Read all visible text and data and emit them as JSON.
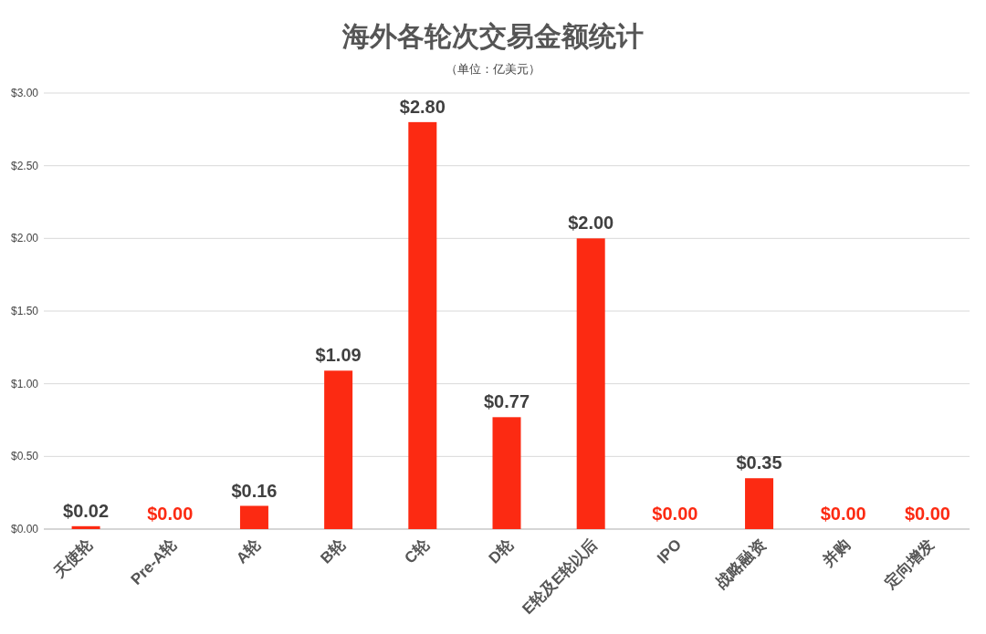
{
  "chart_data": {
    "type": "bar",
    "title": "海外各轮次交易金额统计",
    "subtitle": "（单位：亿美元）",
    "categories": [
      "天使轮",
      "Pre-A轮",
      "A轮",
      "B轮",
      "C轮",
      "D轮",
      "E轮及E轮以后",
      "IPO",
      "战略融资",
      "并购",
      "定向增发"
    ],
    "values": [
      0.02,
      0,
      0.16,
      1.09,
      2.8,
      0.77,
      2.0,
      0,
      0.35,
      0,
      0
    ],
    "value_labels": [
      "$0.02",
      "$0.00",
      "$0.16",
      "$1.09",
      "$2.80",
      "$0.77",
      "$2.00",
      "$0.00",
      "$0.35",
      "$0.00",
      "$0.00"
    ],
    "color": "#fc2a12",
    "ylim": [
      0,
      3
    ],
    "yticks": [
      {
        "value": 0,
        "label": "$0.00"
      },
      {
        "value": 0.5,
        "label": "$0.50"
      },
      {
        "value": 1,
        "label": "$1.00"
      },
      {
        "value": 1.5,
        "label": "$1.50"
      },
      {
        "value": 2,
        "label": "$2.00"
      },
      {
        "value": 2.5,
        "label": "$2.50"
      },
      {
        "value": 3,
        "label": "$3.00"
      }
    ],
    "grid": "y"
  }
}
